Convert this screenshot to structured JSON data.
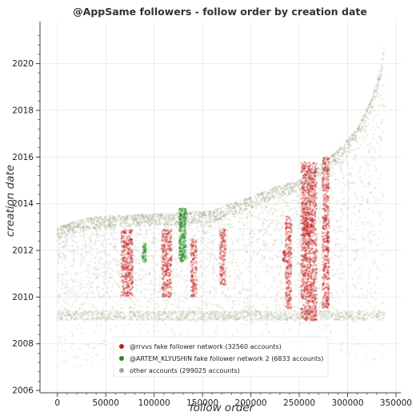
{
  "chart_data": {
    "type": "scatter",
    "title": "@AppSame followers - follow order by creation date",
    "xlabel": "follow order",
    "ylabel": "creation date",
    "xlim": [
      -18000,
      355000
    ],
    "ylim": [
      2005.9,
      2021.8
    ],
    "x_ticks": [
      0,
      50000,
      100000,
      150000,
      200000,
      250000,
      300000,
      350000
    ],
    "x_tick_labels": [
      "0",
      "50000",
      "100000",
      "150000",
      "200000",
      "250000",
      "300000",
      "350000"
    ],
    "y_ticks": [
      2006,
      2008,
      2010,
      2012,
      2014,
      2016,
      2018,
      2020
    ],
    "y_tick_labels": [
      "2006",
      "2008",
      "2010",
      "2012",
      "2014",
      "2016",
      "2018",
      "2020"
    ],
    "grid": true,
    "legend_position": "bottom-center",
    "series": [
      {
        "name": "@rrvvs fake follower network (32560 accounts)",
        "color": "#c41a1a",
        "count": 32560,
        "clusters": [
          {
            "x_range": [
              66000,
              78000
            ],
            "y_range": [
              2010.0,
              2012.9
            ]
          },
          {
            "x_range": [
              108000,
              118000
            ],
            "y_range": [
              2010.0,
              2012.9
            ]
          },
          {
            "x_range": [
              138000,
              144000
            ],
            "y_range": [
              2010.0,
              2012.5
            ]
          },
          {
            "x_range": [
              168000,
              174000
            ],
            "y_range": [
              2010.5,
              2012.9
            ]
          },
          {
            "x_range": [
              233000,
              236000
            ],
            "y_range": [
              2011.5,
              2012.0
            ]
          },
          {
            "x_range": [
              236000,
              242000
            ],
            "y_range": [
              2009.5,
              2013.5
            ]
          },
          {
            "x_range": [
              252000,
              268000
            ],
            "y_range": [
              2009.0,
              2015.8
            ]
          },
          {
            "x_range": [
              254000,
              264000
            ],
            "y_range": [
              2012.6,
              2013.4
            ]
          },
          {
            "x_range": [
              274000,
              281000
            ],
            "y_range": [
              2009.5,
              2016.0
            ]
          }
        ]
      },
      {
        "name": "@ARTEM_KLYUSHIN fake follower network 2 (6833 accounts)",
        "color": "#1e8c1e",
        "count": 6833,
        "clusters": [
          {
            "x_range": [
              88000,
              92000
            ],
            "y_range": [
              2011.5,
              2012.3
            ]
          },
          {
            "x_range": [
              126000,
              133000
            ],
            "y_range": [
              2011.5,
              2013.8
            ]
          }
        ]
      },
      {
        "name": "other accounts (299025 accounts)",
        "color": "#a4a88a",
        "count": 299025,
        "upper_envelope": [
          {
            "x": 0,
            "y": 2013.0
          },
          {
            "x": 30000,
            "y": 2013.4
          },
          {
            "x": 60000,
            "y": 2013.5
          },
          {
            "x": 120000,
            "y": 2013.6
          },
          {
            "x": 160000,
            "y": 2013.7
          },
          {
            "x": 200000,
            "y": 2014.3
          },
          {
            "x": 230000,
            "y": 2014.8
          },
          {
            "x": 250000,
            "y": 2015.0
          },
          {
            "x": 270000,
            "y": 2015.6
          },
          {
            "x": 290000,
            "y": 2016.3
          },
          {
            "x": 310000,
            "y": 2017.2
          },
          {
            "x": 325000,
            "y": 2018.5
          },
          {
            "x": 335000,
            "y": 2020.0
          },
          {
            "x": 338000,
            "y": 2020.9
          }
        ],
        "dense_band": {
          "y_range": [
            2009.0,
            2009.4
          ]
        }
      }
    ]
  }
}
